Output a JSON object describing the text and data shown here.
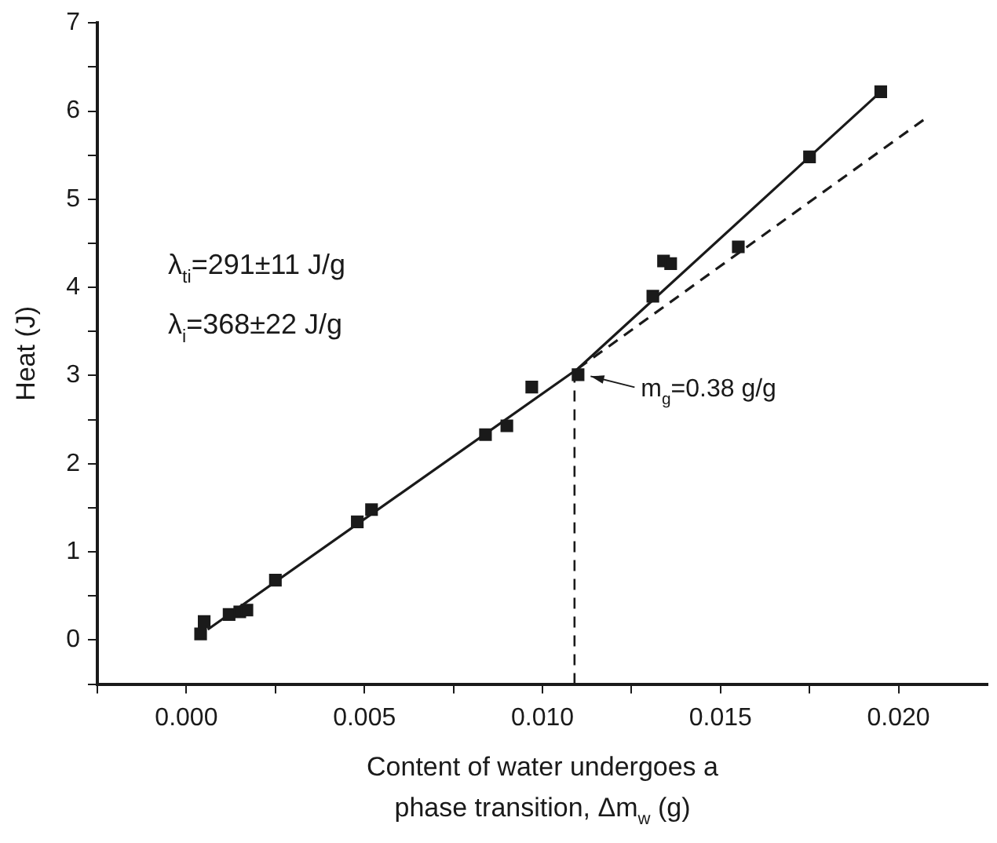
{
  "chart_data": {
    "type": "scatter",
    "xlabel": "Content of water undergoes a phase transition, Δm$_{w}$ (g)",
    "ylabel": "Heat (J)",
    "x": [
      0.0004,
      0.0005,
      0.0012,
      0.0015,
      0.0017,
      0.0025,
      0.0048,
      0.0052,
      0.0084,
      0.009,
      0.0097,
      0.011,
      0.0131,
      0.0134,
      0.0136,
      0.0155,
      0.0175,
      0.0195
    ],
    "series": [
      {
        "type": "scatter",
        "color": "#1a1a1a",
        "marker": "square",
        "values": [
          0.07,
          0.21,
          0.29,
          0.32,
          0.34,
          0.68,
          1.34,
          1.48,
          2.33,
          2.43,
          2.87,
          3.01,
          3.9,
          4.3,
          4.27,
          4.46,
          5.48,
          6.22
        ]
      },
      {
        "type": "line",
        "color": "#1a1a1a",
        "marker": "none",
        "line_style": "solid",
        "x": [
          0.0006,
          0.011,
          0.0195
        ],
        "values": [
          0.12,
          3.08,
          6.22
        ]
      },
      {
        "type": "line",
        "color": "#1a1a1a",
        "marker": "none",
        "line_style": "dashed",
        "x": [
          0.011,
          0.0207
        ],
        "values": [
          3.08,
          5.9
        ]
      }
    ],
    "xlim": [
      -0.0025,
      0.0225
    ],
    "xticks": [
      {
        "value": -0.0025,
        "label": null
      },
      {
        "value": 0,
        "label": "0.000"
      },
      {
        "value": 0.0025,
        "label": null
      },
      {
        "value": 0.005,
        "label": "0.005"
      },
      {
        "value": 0.0075,
        "label": null
      },
      {
        "value": 0.01,
        "label": "0.010"
      },
      {
        "value": 0.0125,
        "label": null
      },
      {
        "value": 0.015,
        "label": "0.015"
      },
      {
        "value": 0.0175,
        "label": null
      },
      {
        "value": 0.02,
        "label": "0.020"
      }
    ],
    "ylim": [
      -0.5,
      7
    ],
    "yticks": [
      {
        "value": -0.5,
        "label": null
      },
      0,
      {
        "value": 0.5,
        "label": null
      },
      1,
      {
        "value": 1.5,
        "label": null
      },
      2,
      {
        "value": 2.5,
        "label": null
      },
      3,
      {
        "value": 3.5,
        "label": null
      },
      4,
      {
        "value": 4.5,
        "label": null
      },
      5,
      {
        "value": 5.5,
        "label": null
      },
      6,
      {
        "value": 6.5,
        "label": null
      },
      7
    ],
    "ref_lines": [
      {
        "axis": "x",
        "value": 0.0109,
        "color": "#1a1a1a",
        "line_style": "dashed"
      }
    ],
    "annotations": [
      "λ$_{ti}$=291±11 J/g",
      "λ$_{i}$=368±22 J/g",
      {
        "text": "m$_{g}$=0.38 g/g",
        "x": 0.011,
        "y": 3.01
      }
    ],
    "grid": false,
    "legend": false
  }
}
